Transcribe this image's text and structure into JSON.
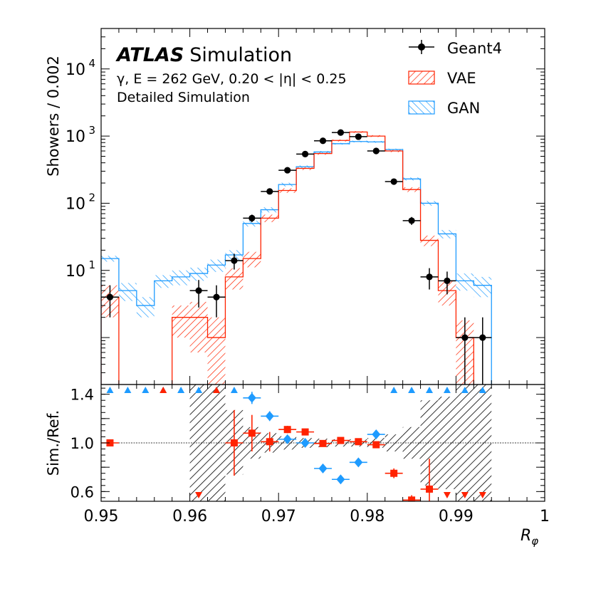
{
  "chart_data": [
    {
      "panel": "main",
      "type": "histogram",
      "yscale": "log",
      "xlim": [
        0.95,
        1.0
      ],
      "ylim": [
        0.2,
        40000
      ],
      "bin_width": 0.002,
      "bin_edges": [
        0.95,
        0.952,
        0.954,
        0.956,
        0.958,
        0.96,
        0.962,
        0.964,
        0.966,
        0.968,
        0.97,
        0.972,
        0.974,
        0.976,
        0.978,
        0.98,
        0.982,
        0.984,
        0.986,
        0.988,
        0.99,
        0.992,
        0.994
      ],
      "ylabel": "Showers / 0.002",
      "title_bold": "ATLAS",
      "title_rest": "Simulation",
      "info_line1": "γ, E = 262 GeV, 0.20 < |η| < 0.25",
      "info_line2": "Detailed Simulation",
      "y_ticks": [
        {
          "value": 10,
          "base": "10",
          "exp": "1"
        },
        {
          "value": 100,
          "base": "10",
          "exp": "2"
        },
        {
          "value": 1000,
          "base": "10",
          "exp": "3"
        },
        {
          "value": 10000,
          "base": "10",
          "exp": "4"
        }
      ],
      "legend": [
        {
          "label": "Geant4",
          "style": "marker",
          "color": "#000000"
        },
        {
          "label": "VAE",
          "style": "hatch",
          "color": "#ff2200"
        },
        {
          "label": "GAN",
          "style": "hatch",
          "color": "#1e9bff"
        }
      ],
      "series": [
        {
          "name": "Geant4",
          "color": "#000000",
          "x": [
            0.951,
            0.961,
            0.963,
            0.965,
            0.967,
            0.969,
            0.971,
            0.973,
            0.975,
            0.977,
            0.979,
            0.981,
            0.983,
            0.985,
            0.987,
            0.989,
            0.991,
            0.993
          ],
          "y": [
            4,
            5,
            4,
            14,
            60,
            150,
            310,
            540,
            850,
            1130,
            980,
            600,
            210,
            55,
            8,
            7,
            1,
            1
          ],
          "err": [
            2,
            2.2,
            2,
            3.7,
            7.7,
            12,
            17.6,
            23,
            29,
            34,
            31,
            24.5,
            14.5,
            7.4,
            2.8,
            2.6,
            1,
            1
          ]
        },
        {
          "name": "VAE",
          "color": "#ff2200",
          "y": [
            4,
            0,
            0,
            0,
            2,
            2,
            1,
            8,
            15,
            60,
            155,
            330,
            550,
            860,
            1150,
            1000,
            600,
            160,
            28,
            5,
            1,
            0
          ],
          "err": [
            2,
            0,
            0,
            0,
            1,
            1.4,
            1,
            2.8,
            3.9,
            7.7,
            12,
            18,
            23,
            29,
            34,
            32,
            24,
            13,
            5,
            2,
            0.8,
            0
          ]
        },
        {
          "name": "GAN",
          "color": "#1e9bff",
          "y": [
            15,
            5,
            3,
            7,
            8,
            9,
            12,
            17,
            50,
            80,
            190,
            350,
            580,
            770,
            830,
            820,
            630,
            230,
            100,
            35,
            7,
            6
          ],
          "err": [
            1.5,
            1.5,
            1,
            1.5,
            2,
            2,
            2.5,
            3,
            5,
            7,
            12,
            15,
            20,
            22,
            25,
            25,
            20,
            12,
            8,
            5,
            2,
            2
          ]
        }
      ]
    },
    {
      "panel": "ratio",
      "type": "scatter",
      "xlim": [
        0.95,
        1.0
      ],
      "ylim": [
        0.52,
        1.48
      ],
      "ylabel": "Sim./Ref.",
      "xlabel_base": "R",
      "xlabel_sub": "φ",
      "y_ticks": [
        {
          "value": 0.6,
          "label": "0.6"
        },
        {
          "value": 1.0,
          "label": "1.0"
        },
        {
          "value": 1.4,
          "label": "1.4"
        }
      ],
      "x_ticks": [
        {
          "value": 0.95,
          "label": "0.95"
        },
        {
          "value": 0.96,
          "label": "0.96"
        },
        {
          "value": 0.97,
          "label": "0.97"
        },
        {
          "value": 0.98,
          "label": "0.98"
        },
        {
          "value": 0.99,
          "label": "0.99"
        },
        {
          "value": 1.0,
          "label": "1"
        }
      ],
      "reference_line": 1.0,
      "uncertainty_band": [
        {
          "x0": 0.96,
          "x1": 0.962,
          "y0": 0.52,
          "y1": 1.48
        },
        {
          "x0": 0.962,
          "x1": 0.964,
          "y0": 0.52,
          "y1": 1.48
        },
        {
          "x0": 0.964,
          "x1": 0.966,
          "y0": 0.74,
          "y1": 1.27
        },
        {
          "x0": 0.966,
          "x1": 0.968,
          "y0": 0.87,
          "y1": 1.13
        },
        {
          "x0": 0.968,
          "x1": 0.97,
          "y0": 0.92,
          "y1": 1.08
        },
        {
          "x0": 0.97,
          "x1": 0.972,
          "y0": 0.945,
          "y1": 1.055
        },
        {
          "x0": 0.972,
          "x1": 0.974,
          "y0": 0.96,
          "y1": 1.04
        },
        {
          "x0": 0.974,
          "x1": 0.976,
          "y0": 0.965,
          "y1": 1.035
        },
        {
          "x0": 0.976,
          "x1": 0.978,
          "y0": 0.97,
          "y1": 1.03
        },
        {
          "x0": 0.978,
          "x1": 0.98,
          "y0": 0.97,
          "y1": 1.03
        },
        {
          "x0": 0.98,
          "x1": 0.982,
          "y0": 0.96,
          "y1": 1.04
        },
        {
          "x0": 0.982,
          "x1": 0.984,
          "y0": 0.93,
          "y1": 1.07
        },
        {
          "x0": 0.984,
          "x1": 0.986,
          "y0": 0.87,
          "y1": 1.13
        },
        {
          "x0": 0.986,
          "x1": 0.988,
          "y0": 0.65,
          "y1": 1.35
        },
        {
          "x0": 0.988,
          "x1": 0.99,
          "y0": 0.62,
          "y1": 1.38
        },
        {
          "x0": 0.99,
          "x1": 0.994,
          "y0": 0.52,
          "y1": 1.48
        }
      ],
      "vae_points": [
        {
          "x": 0.951,
          "y": 1.0,
          "err": 0
        },
        {
          "x": 0.965,
          "y": 1.0,
          "err": 0.27
        },
        {
          "x": 0.967,
          "y": 1.08,
          "err": 0.15
        },
        {
          "x": 0.969,
          "y": 1.01,
          "err": 0.08
        },
        {
          "x": 0.971,
          "y": 1.11,
          "err": 0.03
        },
        {
          "x": 0.973,
          "y": 1.09,
          "err": 0.02
        },
        {
          "x": 0.975,
          "y": 0.995,
          "err": 0.015
        },
        {
          "x": 0.977,
          "y": 1.02,
          "err": 0.015
        },
        {
          "x": 0.979,
          "y": 1.01,
          "err": 0.015
        },
        {
          "x": 0.981,
          "y": 0.985,
          "err": 0.025
        },
        {
          "x": 0.983,
          "y": 0.75,
          "err": 0.04
        },
        {
          "x": 0.985,
          "y": 0.53,
          "err": 0.04
        },
        {
          "x": 0.987,
          "y": 0.62,
          "err": 0.25
        }
      ],
      "gan_points": [
        {
          "x": 0.967,
          "y": 1.37,
          "err": 0.05
        },
        {
          "x": 0.969,
          "y": 1.22,
          "err": 0.04
        },
        {
          "x": 0.971,
          "y": 1.03,
          "err": 0.02
        },
        {
          "x": 0.973,
          "y": 1.0,
          "err": 0.015
        },
        {
          "x": 0.975,
          "y": 0.79,
          "err": 0.015
        },
        {
          "x": 0.977,
          "y": 0.7,
          "err": 0.01
        },
        {
          "x": 0.979,
          "y": 0.84,
          "err": 0.01
        },
        {
          "x": 0.981,
          "y": 1.07,
          "err": 0.015
        }
      ],
      "vae_arrows_up": [
        0.957,
        0.963
      ],
      "vae_arrows_down": [
        0.961,
        0.989,
        0.991,
        0.993
      ],
      "gan_arrows_up": [
        0.951,
        0.953,
        0.955,
        0.957,
        0.959,
        0.961,
        0.963,
        0.965,
        0.983,
        0.985,
        0.987,
        0.989,
        0.991,
        0.993
      ]
    }
  ]
}
